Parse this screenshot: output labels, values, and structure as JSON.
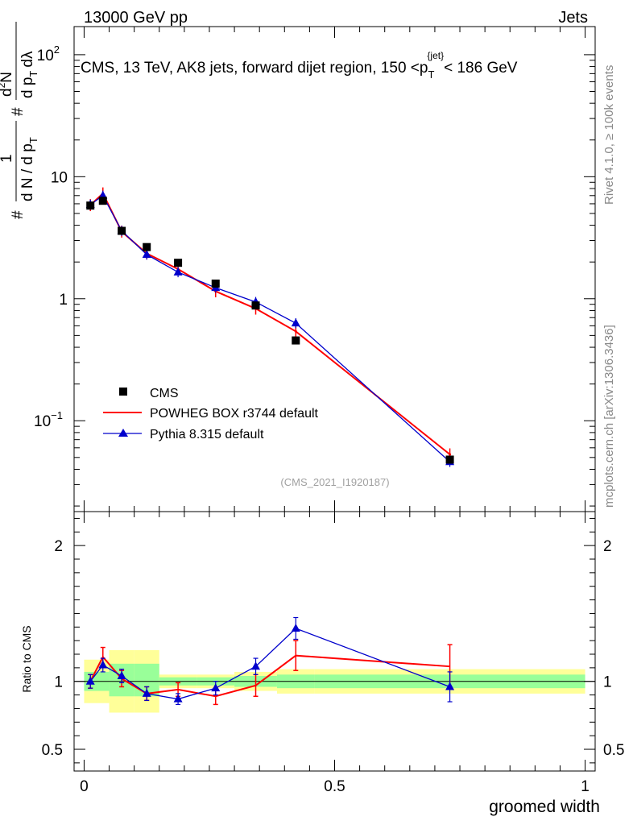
{
  "header": {
    "energy": "13000 GeV pp",
    "category": "Jets"
  },
  "chart_data": {
    "type": "line",
    "title": "CMS, 13 TeV, AK8 jets, forward dijet region, 150 <p_T^{jet}< 186 GeV",
    "title_parts": {
      "prefix": "CMS, 13 TeV, AK8 jets, forward dijet region, 150 <p",
      "sub": "T",
      "sup": "{jet}",
      "suffix": "< 186 GeV"
    },
    "xlabel": "groomed width",
    "ylabel_parts": [
      "#",
      "1",
      "d N / d p",
      "T",
      "#",
      "d",
      "2",
      "N",
      "d p",
      "T",
      "d",
      "λ"
    ],
    "ratio_ylabel": "Ratio to CMS",
    "analysis_tag": "(CMS_2021_I1920187)",
    "xlim": [
      -0.02,
      1.02
    ],
    "ylim_log": [
      0.018,
      170
    ],
    "ratio_ylim": [
      0.34,
      2.25
    ],
    "x_ticks": [
      "0",
      "0.5",
      "1"
    ],
    "y_ticks_main": [
      {
        "base": "10",
        "exp": "−1"
      },
      {
        "base": "1",
        "exp": ""
      },
      {
        "base": "10",
        "exp": ""
      },
      {
        "base": "10",
        "exp": "2"
      }
    ],
    "y_ticks_ratio": [
      "0.5",
      "1",
      "2"
    ],
    "bin_edges": [
      0.0,
      0.025,
      0.05,
      0.1,
      0.15,
      0.225,
      0.3,
      0.385,
      0.46,
      1.0
    ],
    "legend": {
      "position": "bottom-left",
      "entries": [
        "CMS",
        "POWHEG BOX r3744 default",
        "Pythia 8.315 default"
      ]
    },
    "series": [
      {
        "name": "CMS",
        "color": "#000000",
        "marker": "square",
        "x": [
          0.0125,
          0.0375,
          0.075,
          0.125,
          0.1875,
          0.2625,
          0.3425,
          0.4225,
          0.73
        ],
        "y": [
          5.8,
          6.35,
          3.6,
          2.65,
          1.97,
          1.33,
          0.88,
          0.455,
          0.048
        ],
        "ratio_band_stat": [
          [
            0.93,
            1.07
          ],
          [
            0.93,
            1.07
          ],
          [
            0.89,
            1.13
          ],
          [
            0.89,
            1.13
          ],
          [
            0.97,
            1.03
          ],
          [
            0.97,
            1.03
          ],
          [
            0.96,
            1.04
          ],
          [
            0.95,
            1.05
          ],
          [
            0.95,
            1.05
          ]
        ],
        "ratio_band_total": [
          [
            0.84,
            1.16
          ],
          [
            0.84,
            1.16
          ],
          [
            0.77,
            1.23
          ],
          [
            0.77,
            1.23
          ],
          [
            0.95,
            1.05
          ],
          [
            0.95,
            1.05
          ],
          [
            0.93,
            1.07
          ],
          [
            0.91,
            1.09
          ],
          [
            0.91,
            1.09
          ]
        ]
      },
      {
        "name": "POWHEG BOX r3744 default",
        "color": "#ff0000",
        "marker": "none",
        "x": [
          0.0125,
          0.0375,
          0.075,
          0.125,
          0.1875,
          0.2625,
          0.3425,
          0.4225,
          0.73
        ],
        "y": [
          5.85,
          7.3,
          3.55,
          2.35,
          1.75,
          1.15,
          0.83,
          0.54,
          0.053
        ],
        "ratio": [
          1.0,
          1.18,
          1.02,
          0.91,
          0.94,
          0.89,
          0.97,
          1.19,
          1.11
        ],
        "ratio_err": [
          0.05,
          0.07,
          0.06,
          0.05,
          0.05,
          0.06,
          0.08,
          0.11,
          0.16
        ]
      },
      {
        "name": "Pythia 8.315 default",
        "color": "#0000cc",
        "marker": "triangle",
        "x": [
          0.0125,
          0.0375,
          0.075,
          0.125,
          0.1875,
          0.2625,
          0.3425,
          0.4225,
          0.73
        ],
        "y": [
          5.9,
          7.0,
          3.6,
          2.3,
          1.65,
          1.23,
          0.94,
          0.63,
          0.046
        ],
        "ratio": [
          1.0,
          1.12,
          1.04,
          0.91,
          0.87,
          0.95,
          1.11,
          1.39,
          0.96
        ],
        "ratio_err": [
          0.05,
          0.05,
          0.05,
          0.05,
          0.04,
          0.05,
          0.06,
          0.08,
          0.11
        ]
      }
    ]
  },
  "side_labels": {
    "rivet": "Rivet 4.1.0, ≥ 100k events",
    "mcplots": "mcplots.cern.ch [arXiv:1306.3436]"
  }
}
